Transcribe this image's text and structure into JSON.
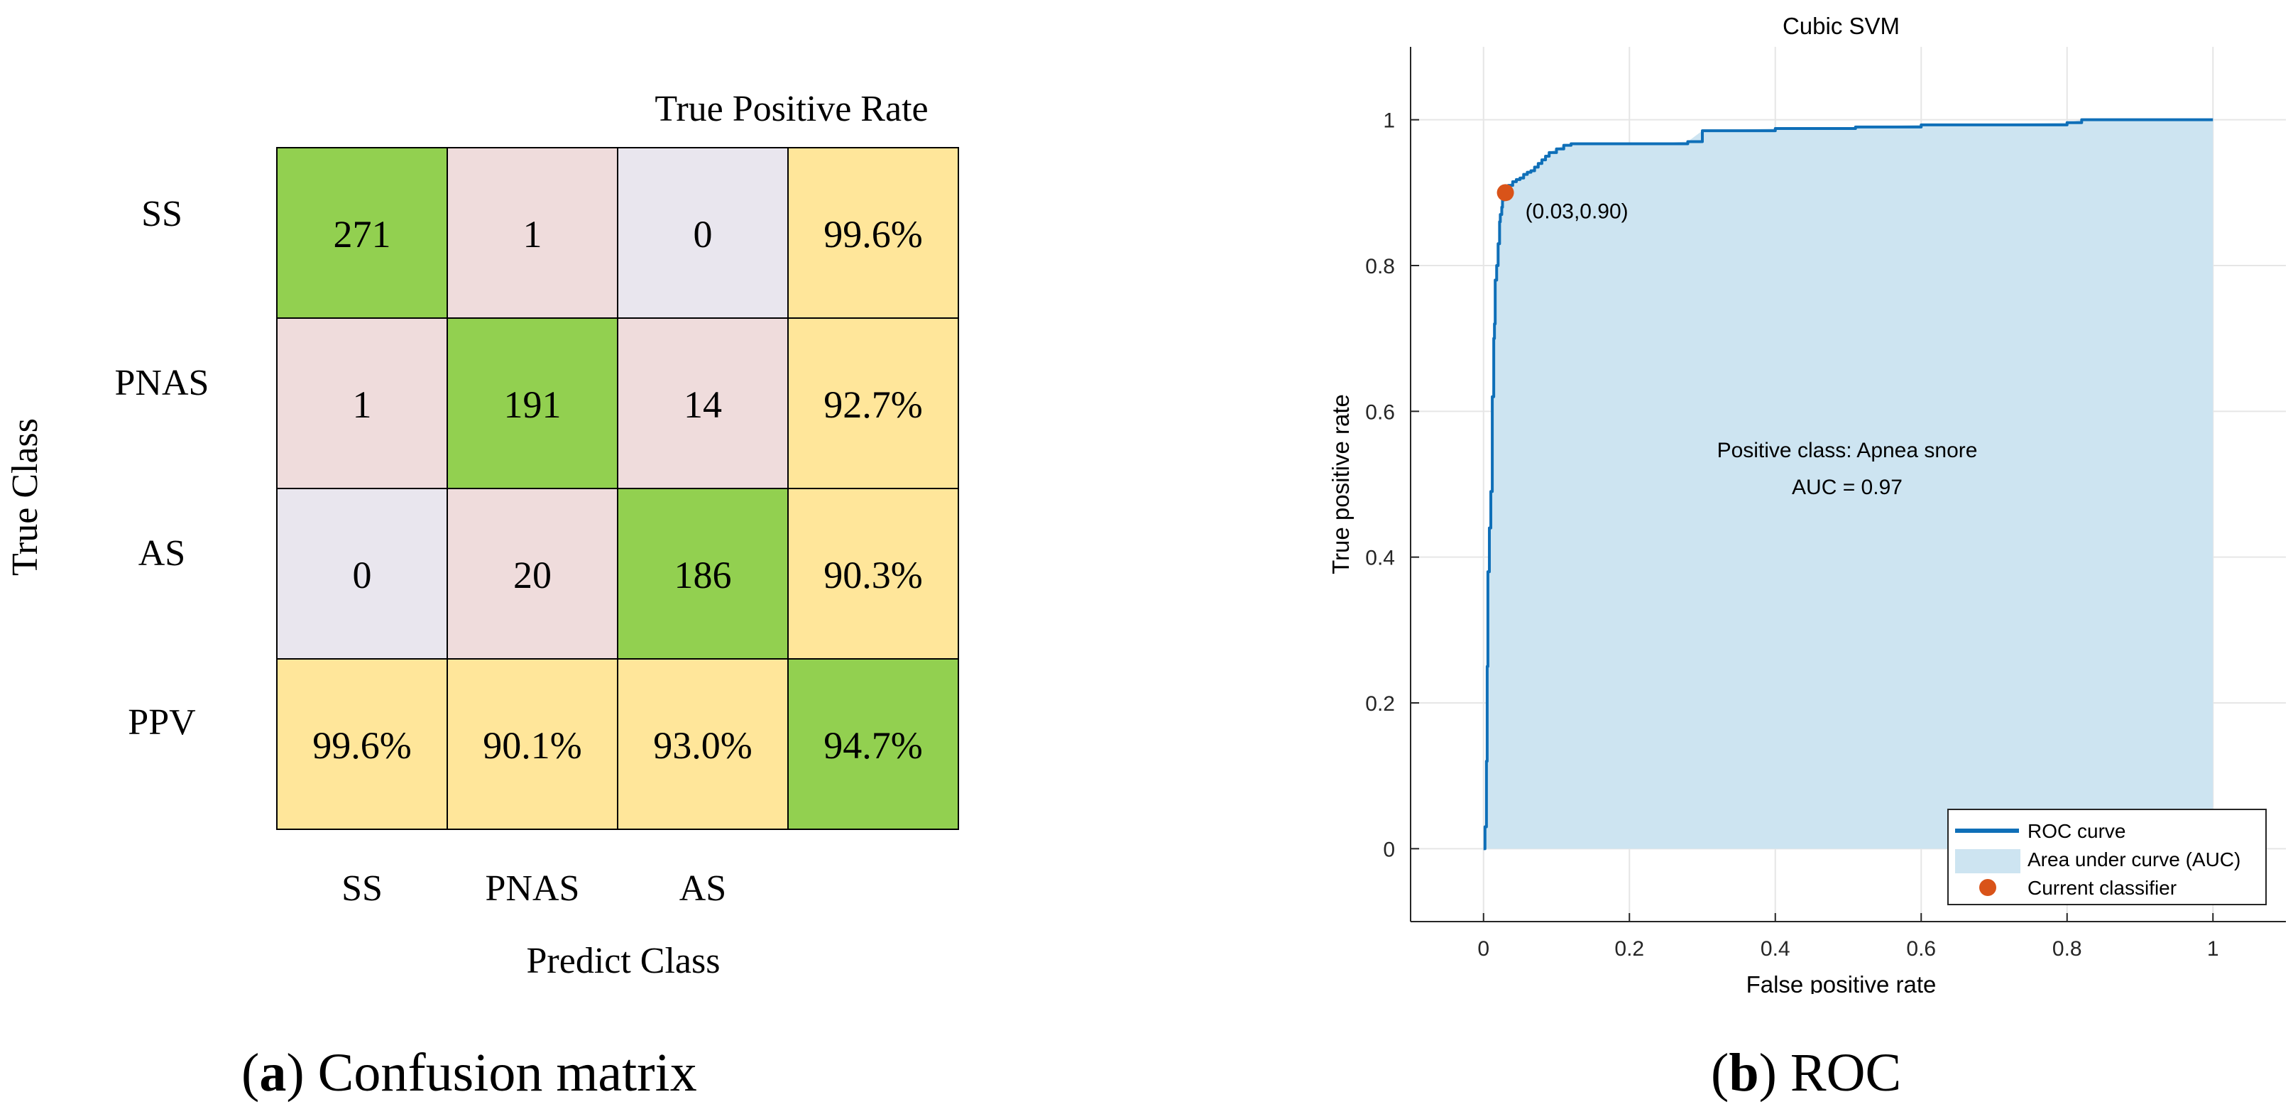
{
  "captions": {
    "a": {
      "prefix": "(",
      "letter": "a",
      "suffix": ") Confusion matrix"
    },
    "b": {
      "prefix": "(",
      "letter": "b",
      "suffix": ") ROC"
    }
  },
  "colors": {
    "diag": "#92d050",
    "class_confusion": "#efdcdc",
    "zero_cell": "#e9e6ee",
    "rate": "#ffe69a",
    "auc_fill": "#cde4f1",
    "roc_line": "#0f6fb8",
    "marker": "#d95319",
    "grid": "#e6e6e6"
  },
  "chart_data": [
    {
      "type": "table",
      "subtype": "confusion_matrix",
      "title": "True Positive Rate",
      "xlabel": "Predict Class",
      "ylabel": "True Class",
      "row_labels": [
        "SS",
        "PNAS",
        "AS",
        "PPV"
      ],
      "col_labels": [
        "SS",
        "PNAS",
        "AS"
      ],
      "cells": [
        [
          "271",
          "1",
          "0",
          "99.6%"
        ],
        [
          "1",
          "191",
          "14",
          "92.7%"
        ],
        [
          "0",
          "20",
          "186",
          "90.3%"
        ],
        [
          "99.6%",
          "90.1%",
          "93.0%",
          "94.7%"
        ]
      ],
      "cell_kinds": [
        [
          "diag",
          "class_confusion",
          "zero_cell",
          "rate"
        ],
        [
          "class_confusion",
          "diag",
          "class_confusion",
          "rate"
        ],
        [
          "zero_cell",
          "class_confusion",
          "diag",
          "rate"
        ],
        [
          "rate",
          "rate",
          "rate",
          "diag"
        ]
      ]
    },
    {
      "type": "area",
      "title": "Cubic SVM",
      "xlabel": "False positive rate",
      "ylabel": "True positive rate",
      "xlim": [
        -0.1,
        1.1
      ],
      "ylim": [
        -0.1,
        1.1
      ],
      "xticks": [
        0,
        0.2,
        0.4,
        0.6,
        0.8,
        1
      ],
      "yticks": [
        0,
        0.2,
        0.4,
        0.6,
        0.8,
        1
      ],
      "xtick_labels": [
        "0",
        "0.2",
        "0.4",
        "0.6",
        "0.8",
        "1"
      ],
      "ytick_labels": [
        "0",
        "0.2",
        "0.4",
        "0.6",
        "0.8",
        "1"
      ],
      "grid": true,
      "annotation_lines": [
        "Positive class: Apnea snore",
        "AUC = 0.97"
      ],
      "auc": 0.97,
      "positive_class": "Apnea snore",
      "roc_curve": {
        "x": [
          0,
          0.002,
          0.004,
          0.005,
          0.006,
          0.008,
          0.008,
          0.01,
          0.012,
          0.012,
          0.014,
          0.015,
          0.016,
          0.018,
          0.02,
          0.02,
          0.022,
          0.023,
          0.025,
          0.026,
          0.028,
          0.03,
          0.034,
          0.04,
          0.045,
          0.05,
          0.055,
          0.06,
          0.065,
          0.07,
          0.075,
          0.08,
          0.085,
          0.09,
          0.1,
          0.11,
          0.12,
          0.13,
          0.17,
          0.22,
          0.28,
          0.3,
          0.4,
          0.51,
          0.6,
          0.8,
          0.82,
          0.9,
          1.0
        ],
        "y": [
          0,
          0.03,
          0.12,
          0.25,
          0.38,
          0.38,
          0.44,
          0.49,
          0.5,
          0.62,
          0.7,
          0.72,
          0.78,
          0.8,
          0.82,
          0.83,
          0.86,
          0.87,
          0.88,
          0.89,
          0.9,
          0.905,
          0.91,
          0.915,
          0.918,
          0.92,
          0.925,
          0.928,
          0.93,
          0.935,
          0.94,
          0.945,
          0.95,
          0.955,
          0.96,
          0.965,
          0.967,
          0.967,
          0.967,
          0.967,
          0.97,
          0.985,
          0.988,
          0.99,
          0.993,
          0.996,
          1.0,
          1.0,
          1.0
        ]
      },
      "current_classifier": {
        "x": 0.03,
        "y": 0.9,
        "label": "(0.03,0.90)"
      },
      "legend": {
        "position": "bottom-right",
        "entries": [
          "ROC curve",
          "Area under curve (AUC)",
          "Current classifier"
        ]
      }
    }
  ]
}
